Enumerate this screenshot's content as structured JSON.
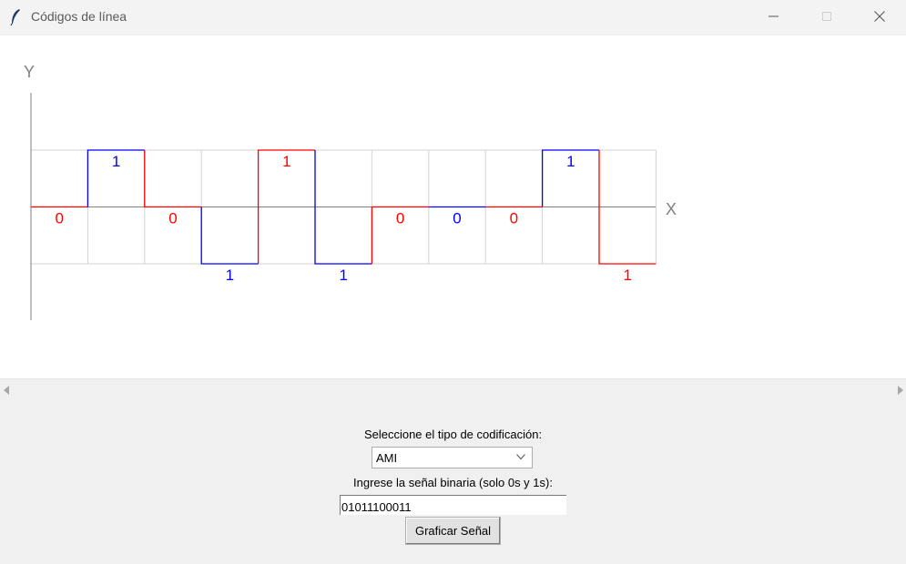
{
  "window": {
    "title": "Códigos de línea"
  },
  "axes": {
    "y_label": "Y",
    "x_label": "X"
  },
  "chart_data": {
    "type": "line",
    "encoding": "AMI",
    "bits": [
      0,
      1,
      0,
      1,
      1,
      1,
      0,
      0,
      0,
      1,
      1
    ],
    "levels": [
      0,
      1,
      0,
      -1,
      1,
      -1,
      0,
      0,
      0,
      1,
      -1
    ],
    "segment_colors": [
      "#ff0000",
      "#0000ff",
      "#ff0000",
      "#0000ff",
      "#ff0000",
      "#0000ff",
      "#ff0000",
      "#0000ff",
      "#ff0000",
      "#0000ff",
      "#ff0000"
    ],
    "grid": true,
    "ylim": [
      -1,
      1
    ]
  },
  "colors": {
    "red": "#ff0000",
    "blue": "#0000ff",
    "grid": "#d3d3d3",
    "axis": "#808080"
  },
  "controls": {
    "type_label": "Seleccione el tipo de codificación:",
    "selected_type": "AMI",
    "signal_label": "Ingrese la señal binaria (solo 0s y 1s):",
    "signal_value": "01011100011",
    "plot_button": "Graficar Señal"
  }
}
